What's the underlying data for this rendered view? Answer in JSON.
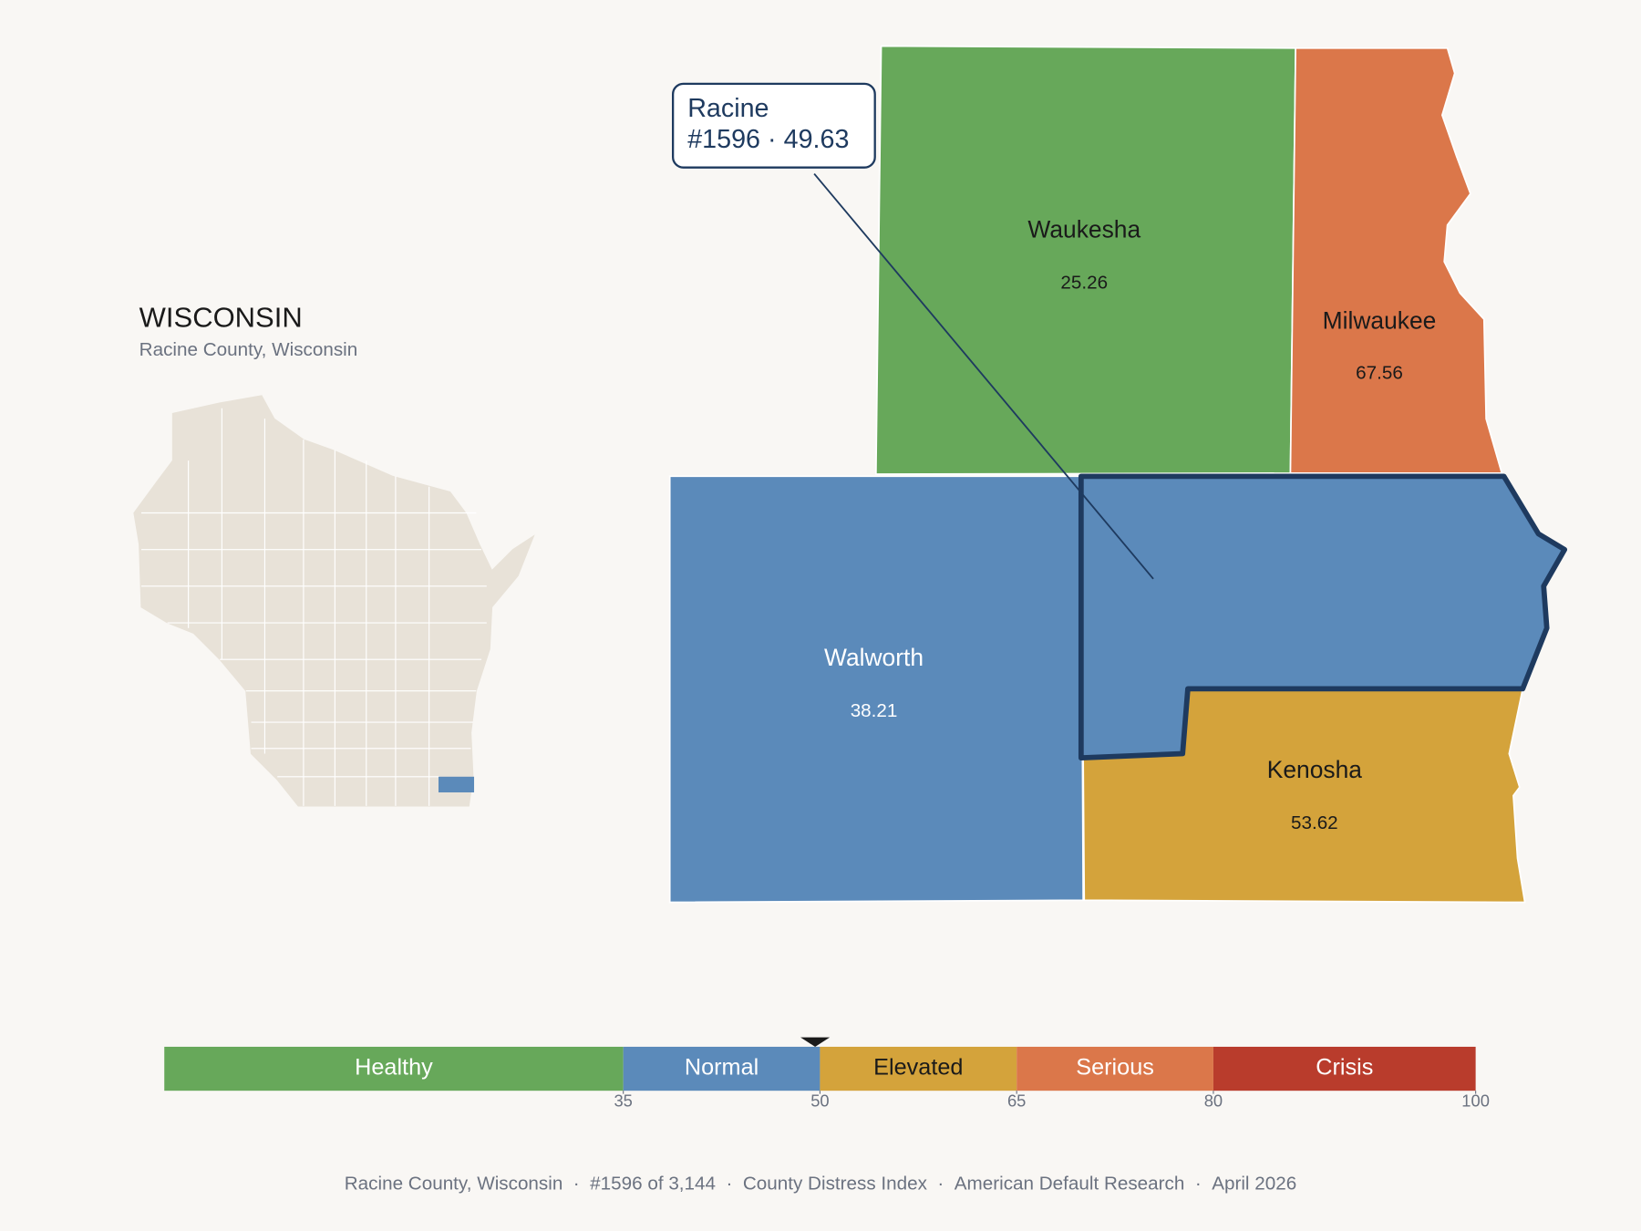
{
  "inset": {
    "title": "WISCONSIN",
    "subtitle": "Racine County, Wisconsin"
  },
  "callout": {
    "name": "Racine",
    "rank": "#1596",
    "separator": "·",
    "value": 49.63
  },
  "counties": [
    {
      "name": "Waukesha",
      "value": 25.26,
      "color": "#67a85a"
    },
    {
      "name": "Milwaukee",
      "value": 67.56,
      "color": "#db774a"
    },
    {
      "name": "Walworth",
      "value": 38.21,
      "color": "#5b8aba"
    },
    {
      "name": "Kenosha",
      "value": 53.62,
      "color": "#d4a33b"
    },
    {
      "name": "Racine",
      "value": 49.63,
      "color": "#5b8aba"
    }
  ],
  "scale": {
    "range": [
      0,
      100
    ],
    "marker": 49.63,
    "bands": [
      {
        "label": "Healthy",
        "color": "#67a85a"
      },
      {
        "label": "Normal",
        "color": "#5b8aba"
      },
      {
        "label": "Elevated",
        "color": "#d4a33b"
      },
      {
        "label": "Serious",
        "color": "#db774a"
      },
      {
        "label": "Crisis",
        "color": "#b93c2c"
      }
    ],
    "ticks": [
      35,
      50,
      65,
      80,
      100
    ]
  },
  "footer": {
    "separator": "·",
    "parts": [
      "Racine County, Wisconsin",
      "#1596 of 3,144",
      "County Distress Index",
      "American Default Research",
      "April 2026"
    ]
  }
}
